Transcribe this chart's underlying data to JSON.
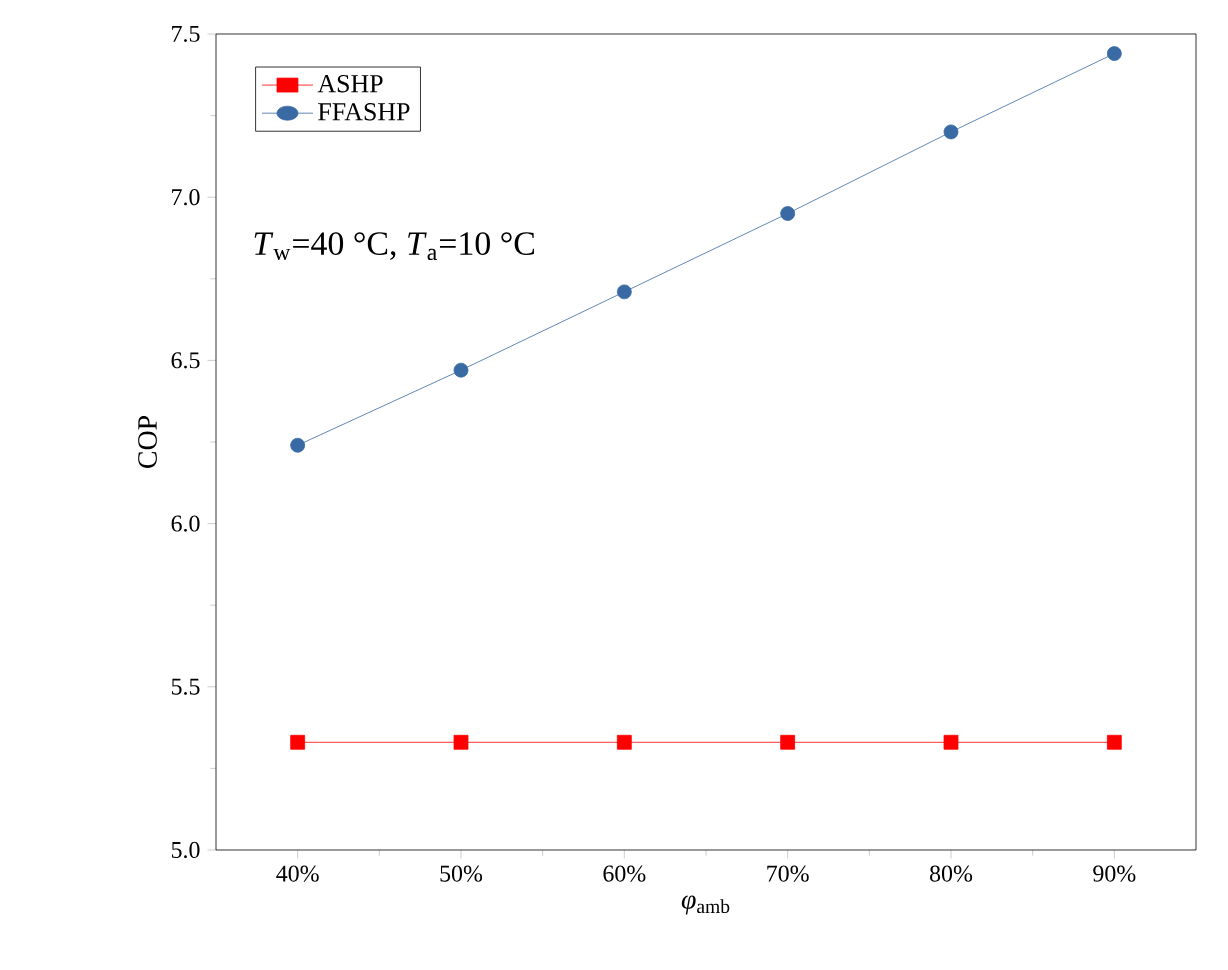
{
  "chart_data": {
    "type": "line",
    "xlabel": "*φ*$_{amb}$",
    "ylabel": "COP",
    "x": [
      40,
      50,
      60,
      70,
      80,
      90
    ],
    "series": [
      {
        "name": "ASHP",
        "color": "#ff0000",
        "marker": "square",
        "values": [
          5.33,
          5.33,
          5.33,
          5.33,
          5.33,
          5.33
        ]
      },
      {
        "name": "FFASHP",
        "color": "#3a6aa3",
        "marker": "circle",
        "values": [
          6.24,
          6.47,
          6.71,
          6.95,
          7.2,
          7.44
        ]
      }
    ],
    "xlim": [
      35,
      95
    ],
    "xticks": [
      {
        "value": 40,
        "label": "40%"
      },
      {
        "value": 50,
        "label": "50%"
      },
      {
        "value": 60,
        "label": "60%"
      },
      {
        "value": 70,
        "label": "70%"
      },
      {
        "value": 80,
        "label": "80%"
      },
      {
        "value": 90,
        "label": "90%"
      }
    ],
    "ylim": [
      5.0,
      7.5
    ],
    "yticks": [
      {
        "value": 5.0,
        "label": "5.0"
      },
      {
        "value": 5.5,
        "label": "5.5"
      },
      {
        "value": 6.0,
        "label": "6.0"
      },
      {
        "value": 6.5,
        "label": "6.5"
      },
      {
        "value": 7.0,
        "label": "7.0"
      },
      {
        "value": 7.5,
        "label": "7.5"
      }
    ],
    "annotations": [
      "*T*$_{w}$=40 °C, *T*$_{a}$=10 °C"
    ],
    "legend": "top left",
    "grid": false
  }
}
